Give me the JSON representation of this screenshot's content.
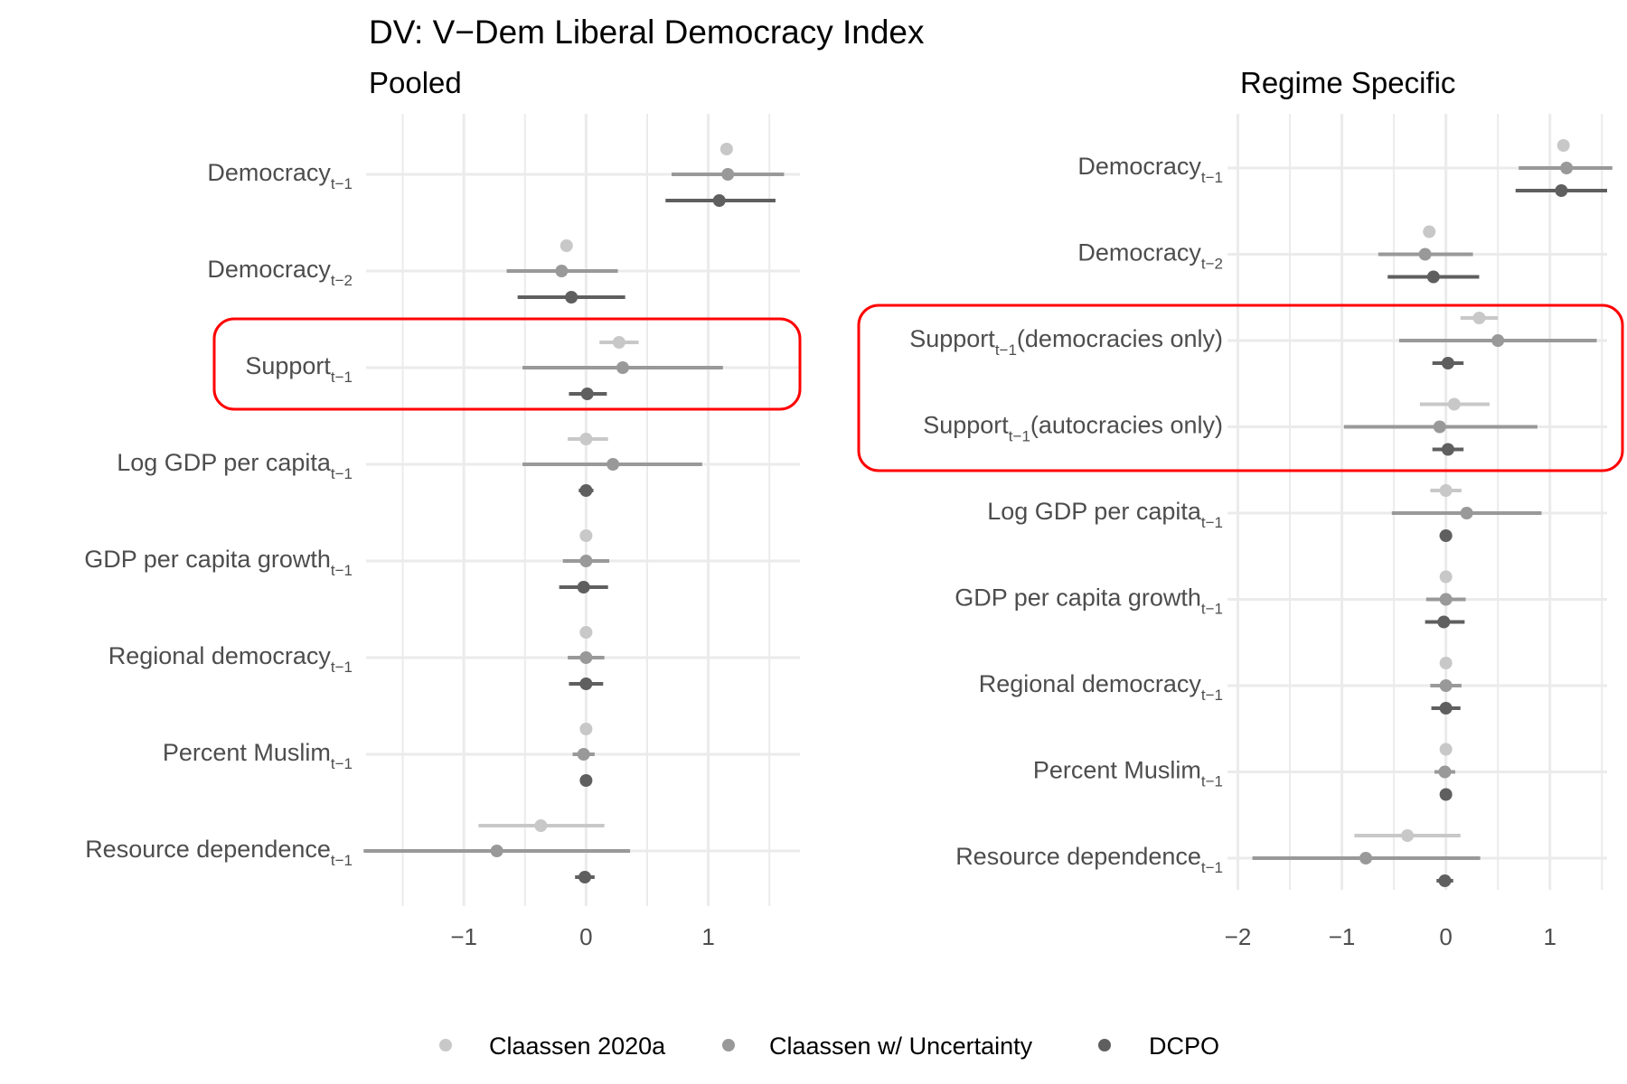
{
  "title": "DV: V−Dem Liberal Democracy Index",
  "colors": {
    "series": [
      "#c8c8c8",
      "#999999",
      "#5f5f5f"
    ],
    "grid": "#ebebeb",
    "highlight": "#ff0000",
    "text": "#4d4d4d",
    "title": "#000000"
  },
  "legend": {
    "position": "bottom",
    "items": [
      "Claassen 2020a",
      "Claassen w/ Uncertainty",
      "DCPO"
    ]
  },
  "chart_data": [
    {
      "type": "coefficient-plot",
      "subtitle": "Pooled",
      "xlim": [
        -1.8,
        1.75
      ],
      "xticks": [
        -1,
        0,
        1
      ],
      "xtick_labels": [
        "−1",
        "0",
        "1"
      ],
      "grid": true,
      "highlight_rows": [
        2,
        2
      ],
      "series_names": [
        "Claassen 2020a",
        "Claassen w/ Uncertainty",
        "DCPO"
      ],
      "terms": [
        {
          "base": "Democracy",
          "sub": "t−1",
          "suffix": "",
          "estimates": [
            [
              1.15,
              1.15,
              1.15
            ],
            [
              1.16,
              0.7,
              1.62
            ],
            [
              1.09,
              0.65,
              1.55
            ]
          ]
        },
        {
          "base": "Democracy",
          "sub": "t−2",
          "suffix": "",
          "estimates": [
            [
              -0.16,
              -0.16,
              -0.16
            ],
            [
              -0.2,
              -0.65,
              0.26
            ],
            [
              -0.12,
              -0.56,
              0.32
            ]
          ]
        },
        {
          "base": "Support",
          "sub": "t−1",
          "suffix": "",
          "estimates": [
            [
              0.27,
              0.11,
              0.43
            ],
            [
              0.3,
              -0.52,
              1.12
            ],
            [
              0.01,
              -0.14,
              0.17
            ]
          ]
        },
        {
          "base": "Log GDP per capita",
          "sub": "t−1",
          "suffix": "",
          "estimates": [
            [
              0.0,
              -0.15,
              0.18
            ],
            [
              0.22,
              -0.52,
              0.95
            ],
            [
              0.0,
              -0.06,
              0.06
            ]
          ]
        },
        {
          "base": "GDP per capita growth",
          "sub": "t−1",
          "suffix": "",
          "estimates": [
            [
              0.0,
              0.0,
              0.0
            ],
            [
              0.0,
              -0.19,
              0.19
            ],
            [
              -0.02,
              -0.22,
              0.18
            ]
          ]
        },
        {
          "base": "Regional democracy",
          "sub": "t−1",
          "suffix": "",
          "estimates": [
            [
              0.0,
              0.0,
              0.0
            ],
            [
              0.0,
              -0.15,
              0.15
            ],
            [
              0.0,
              -0.14,
              0.14
            ]
          ]
        },
        {
          "base": "Percent Muslim",
          "sub": "t−1",
          "suffix": "",
          "estimates": [
            [
              0.0,
              0.0,
              0.0
            ],
            [
              -0.02,
              -0.11,
              0.07
            ],
            [
              0.0,
              0.0,
              0.0
            ]
          ]
        },
        {
          "base": "Resource dependence",
          "sub": "t−1",
          "suffix": "",
          "estimates": [
            [
              -0.37,
              -0.88,
              0.15
            ],
            [
              -0.73,
              -1.82,
              0.36
            ],
            [
              -0.01,
              -0.09,
              0.07
            ]
          ]
        }
      ]
    },
    {
      "type": "coefficient-plot",
      "subtitle": "Regime Specific",
      "xlim": [
        -2.1,
        1.55
      ],
      "xticks": [
        -2,
        -1,
        0,
        1
      ],
      "xtick_labels": [
        "−2",
        "−1",
        "0",
        "1"
      ],
      "grid": true,
      "highlight_rows": [
        2,
        3
      ],
      "series_names": [
        "Claassen 2020a",
        "Claassen w/ Uncertainty",
        "DCPO"
      ],
      "terms": [
        {
          "base": "Democracy",
          "sub": "t−1",
          "suffix": "",
          "estimates": [
            [
              1.13,
              1.13,
              1.13
            ],
            [
              1.16,
              0.7,
              1.6
            ],
            [
              1.11,
              0.67,
              1.55
            ]
          ]
        },
        {
          "base": "Democracy",
          "sub": "t−2",
          "suffix": "",
          "estimates": [
            [
              -0.16,
              -0.16,
              -0.16
            ],
            [
              -0.2,
              -0.65,
              0.26
            ],
            [
              -0.12,
              -0.56,
              0.32
            ]
          ]
        },
        {
          "base": "Support",
          "sub": "t−1",
          "suffix": "(democracies only)",
          "estimates": [
            [
              0.32,
              0.14,
              0.5
            ],
            [
              0.5,
              -0.45,
              1.45
            ],
            [
              0.02,
              -0.13,
              0.17
            ]
          ]
        },
        {
          "base": "Support",
          "sub": "t−1",
          "suffix": "(autocracies only)",
          "estimates": [
            [
              0.08,
              -0.25,
              0.42
            ],
            [
              -0.06,
              -0.98,
              0.88
            ],
            [
              0.02,
              -0.13,
              0.17
            ]
          ]
        },
        {
          "base": "Log GDP per capita",
          "sub": "t−1",
          "suffix": "",
          "estimates": [
            [
              0.0,
              -0.15,
              0.15
            ],
            [
              0.2,
              -0.52,
              0.92
            ],
            [
              0.0,
              -0.06,
              0.06
            ]
          ]
        },
        {
          "base": "GDP per capita growth",
          "sub": "t−1",
          "suffix": "",
          "estimates": [
            [
              0.0,
              0.0,
              0.0
            ],
            [
              0.0,
              -0.19,
              0.19
            ],
            [
              -0.02,
              -0.2,
              0.18
            ]
          ]
        },
        {
          "base": "Regional democracy",
          "sub": "t−1",
          "suffix": "",
          "estimates": [
            [
              0.0,
              0.0,
              0.0
            ],
            [
              0.0,
              -0.15,
              0.15
            ],
            [
              0.0,
              -0.14,
              0.14
            ]
          ]
        },
        {
          "base": "Percent Muslim",
          "sub": "t−1",
          "suffix": "",
          "estimates": [
            [
              0.0,
              0.0,
              0.0
            ],
            [
              -0.01,
              -0.11,
              0.09
            ],
            [
              0.0,
              0.0,
              0.0
            ]
          ]
        },
        {
          "base": "Resource dependence",
          "sub": "t−1",
          "suffix": "",
          "estimates": [
            [
              -0.37,
              -0.88,
              0.14
            ],
            [
              -0.77,
              -1.86,
              0.33
            ],
            [
              -0.01,
              -0.09,
              0.07
            ]
          ]
        }
      ]
    }
  ]
}
